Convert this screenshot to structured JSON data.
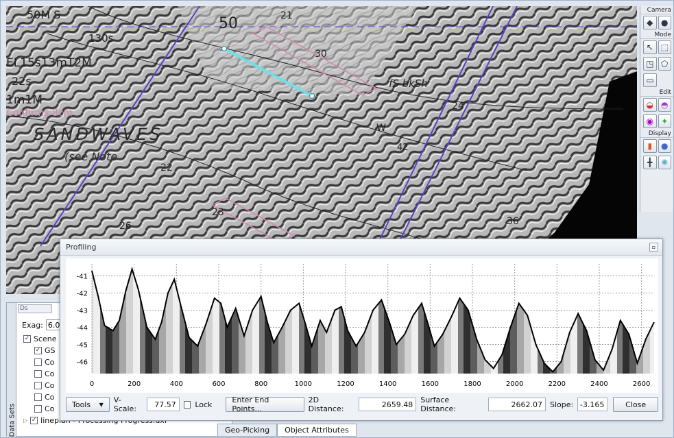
{
  "viewport": {
    "labels": {
      "depth_50": "50",
      "depth_30": "30",
      "depth_21": "21",
      "top_left_code": "50M S",
      "code_130": "130s",
      "geology_1": "EL15s13mT2M",
      "geology_2": "1m1M",
      "geology_3": "22s",
      "geology_4": "fS bkSh",
      "sandwaves": "SANDWAVES",
      "see_note": "(see Note",
      "pink_text": "Confirms 8cm",
      "small_22": "22",
      "small_26": "26",
      "small_35": "36",
      "small_w": "W",
      "small_42": "42",
      "small_24": "24",
      "small_23": "23"
    },
    "colors": {
      "survey_line": "#5a40c8",
      "profile_line": "#6fe0e8",
      "pink_annotation": "#d08ab0"
    }
  },
  "toolbar": {
    "camera_label": "Camera",
    "mode_label": "Mode",
    "edit_label": "Edit",
    "display_label": "Display"
  },
  "datasets": {
    "tab_label": "Data Sets",
    "filter_placeholder": "Ds",
    "exag_label": "Exag:",
    "exag_value": "6.00",
    "tree": [
      {
        "label": "Scene",
        "checked": true
      },
      {
        "label": "GS",
        "checked": true
      },
      {
        "label": "Co",
        "checked": false
      },
      {
        "label": "Co",
        "checked": false
      },
      {
        "label": "Co",
        "checked": false
      },
      {
        "label": "Co",
        "checked": false
      },
      {
        "label": "Co",
        "checked": false
      }
    ],
    "file_item": "lineplan - Processing Progress.dxf"
  },
  "bottom_tabs": {
    "geo_picking": "Geo-Picking",
    "object_attributes": "Object Attributes"
  },
  "profiling": {
    "title": "Profiling",
    "tools_label": "Tools",
    "vscale_label": "V-Scale:",
    "vscale_value": "77.57",
    "lock_label": "Lock",
    "end_points_label": "Enter End Points...",
    "distance_2d_label": "2D Distance:",
    "distance_2d_value": "2659.48",
    "surface_distance_label": "Surface Distance:",
    "surface_distance_value": "2662.07",
    "slope_label": "Slope:",
    "slope_value": "-3.165",
    "close_label": "Close"
  },
  "chart_data": {
    "type": "area",
    "x_ticks": [
      0,
      200,
      400,
      600,
      800,
      1000,
      1200,
      1400,
      1600,
      1800,
      2000,
      2200,
      2400,
      2600
    ],
    "y_ticks": [
      -41,
      -42,
      -43,
      -44,
      -45,
      -46
    ],
    "xlim": [
      0,
      2659.48
    ],
    "ylim": [
      -46.7,
      -40.3
    ],
    "grid": true,
    "x": [
      0,
      30,
      60,
      100,
      130,
      160,
      190,
      220,
      260,
      300,
      330,
      360,
      390,
      420,
      460,
      500,
      540,
      580,
      610,
      640,
      680,
      720,
      760,
      800,
      830,
      860,
      900,
      940,
      980,
      1010,
      1040,
      1080,
      1110,
      1150,
      1180,
      1210,
      1250,
      1290,
      1330,
      1370,
      1410,
      1440,
      1480,
      1520,
      1560,
      1590,
      1620,
      1660,
      1700,
      1740,
      1780,
      1820,
      1860,
      1900,
      1940,
      1980,
      2020,
      2060,
      2100,
      2140,
      2180,
      2220,
      2260,
      2300,
      2340,
      2380,
      2420,
      2460,
      2500,
      2540,
      2580,
      2620,
      2659
    ],
    "y": [
      -40.7,
      -42.2,
      -43.9,
      -44.2,
      -43.6,
      -41.9,
      -40.6,
      -41.8,
      -44.0,
      -44.7,
      -43.7,
      -42.0,
      -41.2,
      -42.7,
      -44.6,
      -45.1,
      -43.8,
      -42.3,
      -42.6,
      -44.0,
      -42.9,
      -44.5,
      -43.0,
      -42.2,
      -43.7,
      -44.9,
      -44.0,
      -43.0,
      -42.6,
      -43.8,
      -45.1,
      -43.6,
      -44.3,
      -43.0,
      -42.8,
      -44.2,
      -45.1,
      -44.3,
      -43.0,
      -42.4,
      -43.8,
      -45.0,
      -44.4,
      -43.3,
      -42.6,
      -43.8,
      -45.1,
      -44.4,
      -43.4,
      -42.3,
      -43.0,
      -44.7,
      -45.9,
      -46.4,
      -45.6,
      -44.0,
      -42.6,
      -43.3,
      -45.0,
      -46.1,
      -46.6,
      -46.0,
      -44.3,
      -43.2,
      -44.2,
      -45.9,
      -46.5,
      -45.3,
      -43.6,
      -44.4,
      -46.1,
      -44.7,
      -43.7
    ]
  }
}
